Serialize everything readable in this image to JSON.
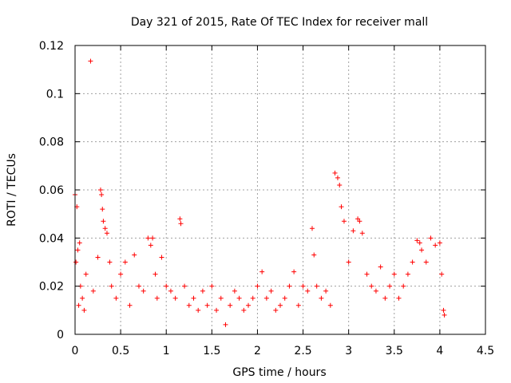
{
  "chart_data": {
    "type": "scatter",
    "title": "Day 321 of 2015, Rate Of TEC Index for receiver mall",
    "xlabel": "GPS time / hours",
    "ylabel": "ROTI / TECUs",
    "xlim": [
      0,
      4.5
    ],
    "ylim": [
      0,
      0.12
    ],
    "xticks": [
      0,
      0.5,
      1,
      1.5,
      2,
      2.5,
      3,
      3.5,
      4,
      4.5
    ],
    "xtick_labels": [
      "0",
      "0.5",
      "1",
      "1.5",
      "2",
      "2.5",
      "3",
      "3.5",
      "4",
      "4.5"
    ],
    "yticks": [
      0,
      0.02,
      0.04,
      0.06,
      0.08,
      0.1,
      0.12
    ],
    "ytick_labels": [
      "0",
      "0.02",
      "0.04",
      "0.06",
      "0.08",
      "0.1",
      "0.12"
    ],
    "grid": true,
    "marker": "+",
    "color": "#ff0000",
    "series": [
      {
        "name": "ROTI",
        "x": [
          0.0,
          0.01,
          0.02,
          0.03,
          0.04,
          0.05,
          0.06,
          0.08,
          0.1,
          0.12,
          0.17,
          0.2,
          0.25,
          0.28,
          0.29,
          0.3,
          0.31,
          0.33,
          0.35,
          0.38,
          0.4,
          0.45,
          0.5,
          0.55,
          0.6,
          0.65,
          0.7,
          0.75,
          0.8,
          0.83,
          0.85,
          0.88,
          0.9,
          0.95,
          1.0,
          1.05,
          1.1,
          1.15,
          1.16,
          1.2,
          1.25,
          1.3,
          1.35,
          1.4,
          1.45,
          1.5,
          1.55,
          1.6,
          1.65,
          1.7,
          1.75,
          1.8,
          1.85,
          1.9,
          1.95,
          2.0,
          2.05,
          2.1,
          2.15,
          2.2,
          2.25,
          2.3,
          2.35,
          2.4,
          2.45,
          2.5,
          2.55,
          2.6,
          2.62,
          2.65,
          2.7,
          2.75,
          2.8,
          2.85,
          2.88,
          2.9,
          2.92,
          2.95,
          3.0,
          3.05,
          3.1,
          3.12,
          3.15,
          3.2,
          3.25,
          3.3,
          3.35,
          3.4,
          3.45,
          3.5,
          3.55,
          3.6,
          3.65,
          3.7,
          3.75,
          3.78,
          3.8,
          3.85,
          3.9,
          3.95,
          4.0,
          4.02,
          4.04,
          4.05
        ],
        "y": [
          0.058,
          0.03,
          0.053,
          0.035,
          0.012,
          0.038,
          0.02,
          0.015,
          0.01,
          0.025,
          0.1135,
          0.018,
          0.032,
          0.06,
          0.058,
          0.052,
          0.047,
          0.044,
          0.042,
          0.03,
          0.02,
          0.015,
          0.025,
          0.03,
          0.012,
          0.033,
          0.02,
          0.018,
          0.04,
          0.037,
          0.04,
          0.025,
          0.015,
          0.032,
          0.02,
          0.018,
          0.015,
          0.048,
          0.046,
          0.02,
          0.012,
          0.015,
          0.01,
          0.018,
          0.012,
          0.02,
          0.01,
          0.015,
          0.004,
          0.012,
          0.018,
          0.015,
          0.01,
          0.012,
          0.015,
          0.02,
          0.026,
          0.015,
          0.018,
          0.01,
          0.012,
          0.015,
          0.02,
          0.026,
          0.012,
          0.02,
          0.018,
          0.044,
          0.033,
          0.02,
          0.015,
          0.018,
          0.012,
          0.067,
          0.065,
          0.062,
          0.053,
          0.047,
          0.03,
          0.043,
          0.048,
          0.047,
          0.042,
          0.025,
          0.02,
          0.018,
          0.028,
          0.015,
          0.02,
          0.025,
          0.015,
          0.02,
          0.025,
          0.03,
          0.039,
          0.038,
          0.035,
          0.03,
          0.04,
          0.037,
          0.038,
          0.025,
          0.01,
          0.008
        ]
      }
    ]
  }
}
